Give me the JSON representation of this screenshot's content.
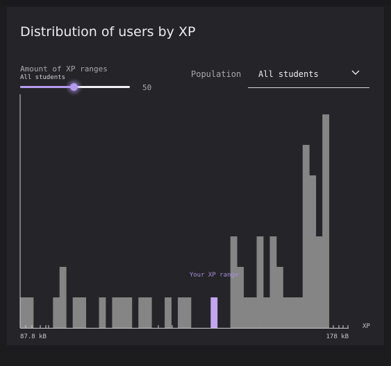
{
  "title": "Distribution of users by XP",
  "slider": {
    "label": "Amount of XP ranges",
    "sublabel": "All students",
    "value": "50",
    "fraction": 0.49
  },
  "population": {
    "label": "Population",
    "selected": "All students"
  },
  "colors": {
    "bar": "#858585",
    "highlight": "#c3a6f2",
    "axis": "#cfcfd2"
  },
  "chart_data": {
    "type": "bar",
    "xlabel": "XP",
    "ylabel": "",
    "xmin_label": "87.8 kB",
    "xmax_label": "178 kB",
    "highlight_label": "Your XP range",
    "highlight_index": 29,
    "ylim": [
      0,
      7.7
    ],
    "values": [
      1,
      1,
      0,
      0,
      0,
      1,
      2,
      0,
      1,
      1,
      0,
      0,
      1,
      0,
      1,
      1,
      1,
      0,
      1,
      1,
      0,
      0,
      1,
      0,
      1,
      1,
      0,
      0,
      0,
      1,
      0,
      0,
      3,
      2,
      1,
      1,
      3,
      1,
      3,
      2,
      1,
      1,
      1,
      6,
      5,
      3,
      7,
      0,
      0,
      0
    ]
  }
}
